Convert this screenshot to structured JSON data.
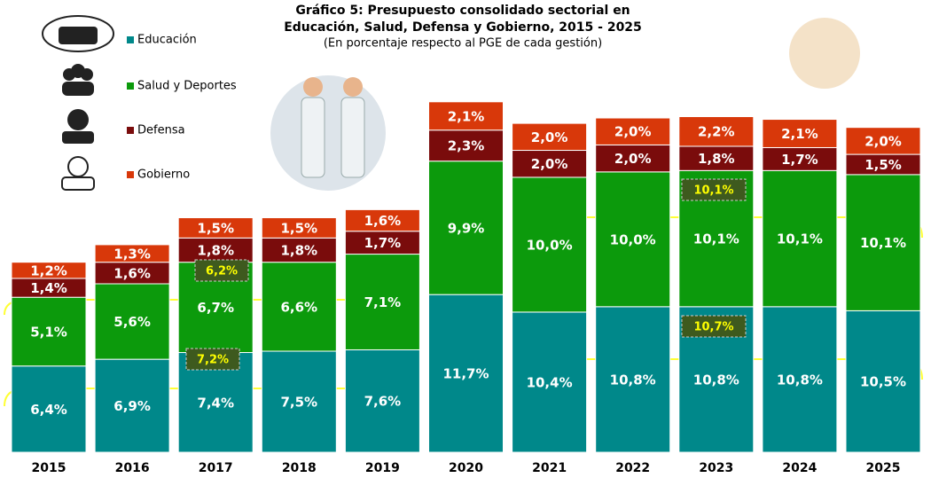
{
  "chart_data": {
    "type": "stacked-bar",
    "title": [
      "Gráfico 5: Presupuesto consolidado sectorial en",
      "Educación, Salud, Defensa y Gobierno, 2015 - 2025"
    ],
    "subtitle": "(En porcentaje respecto al PGE de cada gestión)",
    "categories": [
      "2015",
      "2016",
      "2017",
      "2018",
      "2019",
      "2020",
      "2021",
      "2022",
      "2023",
      "2024",
      "2025"
    ],
    "series": [
      {
        "name": "Educación",
        "color": "#00888a",
        "values": [
          6.4,
          6.9,
          7.4,
          7.5,
          7.6,
          11.7,
          10.4,
          10.8,
          10.8,
          10.8,
          10.5
        ],
        "value_labels": [
          "6,4%",
          "6,9%",
          "7,4%",
          "7,5%",
          "7,6%",
          "11,7%",
          "10,4%",
          "10,8%",
          "10,8%",
          "10,8%",
          "10,5%"
        ]
      },
      {
        "name": "Salud y Deportes",
        "color": "#0c9a0c",
        "values": [
          5.1,
          5.6,
          6.7,
          6.6,
          7.1,
          9.9,
          10.0,
          10.0,
          10.1,
          10.1,
          10.1
        ],
        "value_labels": [
          "5,1%",
          "5,6%",
          "6,7%",
          "6,6%",
          "7,1%",
          "9,9%",
          "10,0%",
          "10,0%",
          "10,1%",
          "10,1%",
          "10,1%"
        ]
      },
      {
        "name": "Defensa",
        "color": "#7a0c0c",
        "values": [
          1.4,
          1.6,
          1.8,
          1.8,
          1.7,
          2.3,
          2.0,
          2.0,
          1.8,
          1.7,
          1.5
        ],
        "value_labels": [
          "1,4%",
          "1,6%",
          "1,8%",
          "1,8%",
          "1,7%",
          "2,3%",
          "2,0%",
          "2,0%",
          "1,8%",
          "1,7%",
          "1,5%"
        ]
      },
      {
        "name": "Gobierno",
        "color": "#d8380a",
        "values": [
          1.2,
          1.3,
          1.5,
          1.5,
          1.6,
          2.1,
          2.0,
          2.0,
          2.2,
          2.1,
          2.0
        ],
        "value_labels": [
          "1,2%",
          "1,3%",
          "1,5%",
          "1,5%",
          "1,6%",
          "2,1%",
          "2,0%",
          "2,0%",
          "2,2%",
          "2,1%",
          "2,0%"
        ]
      }
    ],
    "annotations": [
      "6,2%",
      "7,2%",
      "10,1%",
      "10,7%"
    ]
  }
}
